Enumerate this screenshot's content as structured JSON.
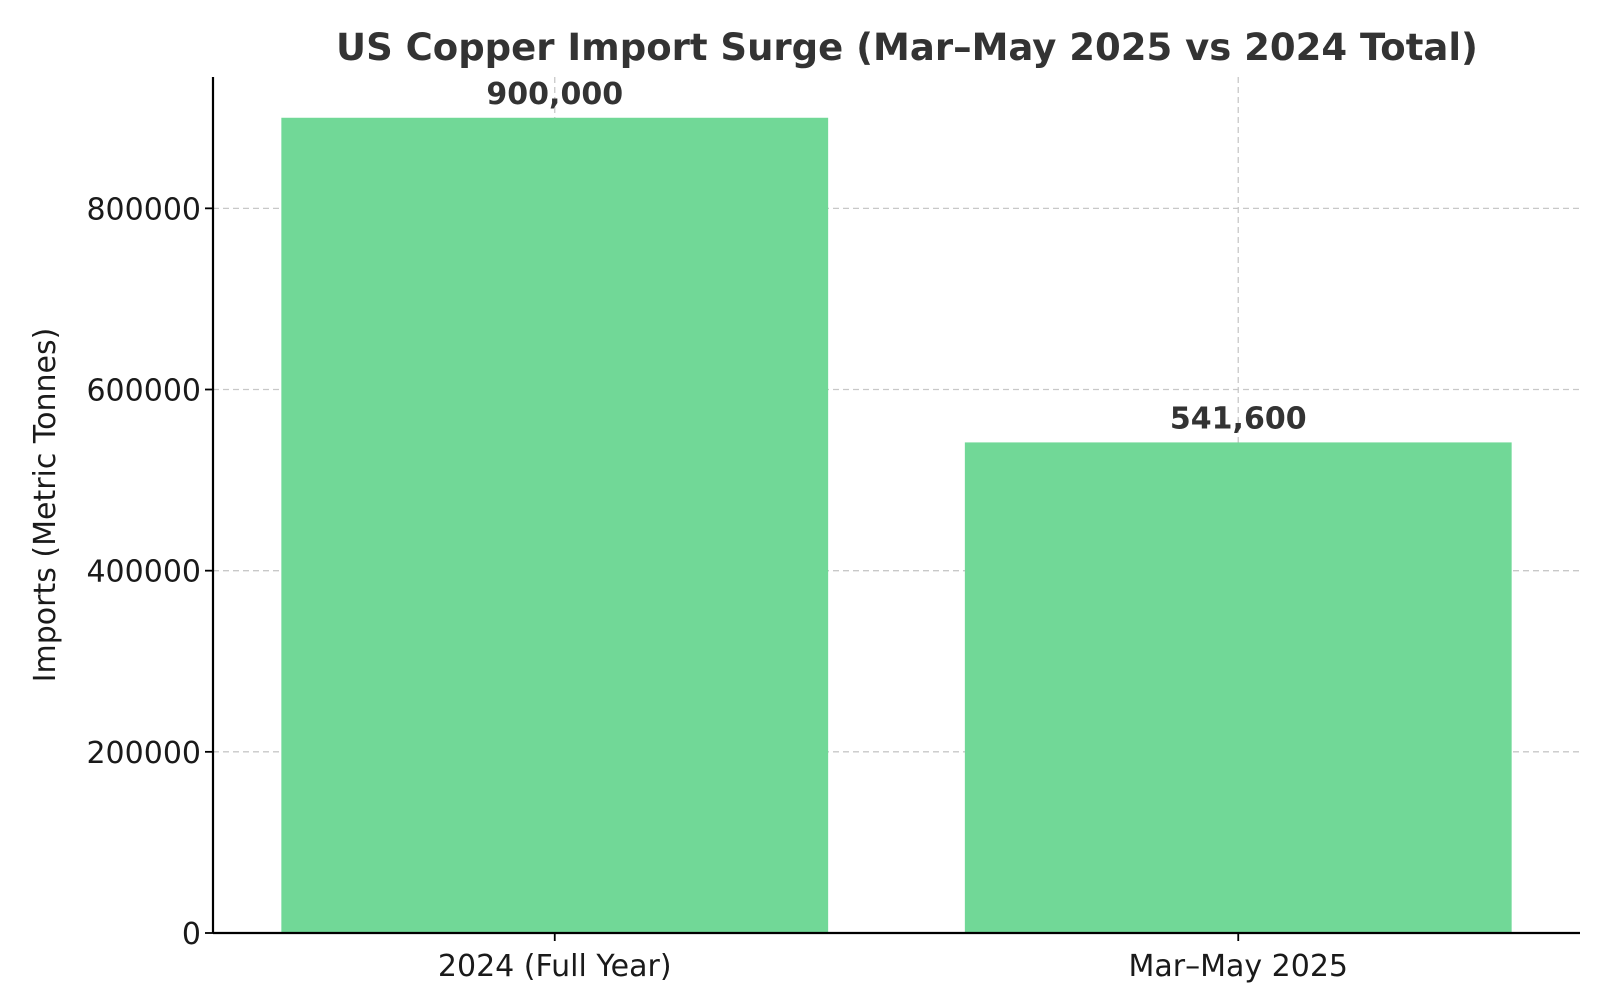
{
  "chart_data": {
    "type": "bar",
    "title": "US Copper Import Surge (Mar–May 2025 vs 2024 Total)",
    "xlabel": "",
    "ylabel": "Imports (Metric Tonnes)",
    "categories": [
      "2024 (Full Year)",
      "Mar–May 2025"
    ],
    "values": [
      900000,
      541600
    ],
    "data_labels": [
      "900,000",
      "541,600"
    ],
    "ylim": [
      0,
      945000
    ],
    "yticks": [
      0,
      200000,
      400000,
      600000,
      800000
    ],
    "ytick_labels": [
      "0",
      "200000",
      "400000",
      "600000",
      "800000"
    ],
    "grid": true,
    "grid_style": "dashed",
    "legend": "none",
    "bar_color": "#71d897"
  }
}
